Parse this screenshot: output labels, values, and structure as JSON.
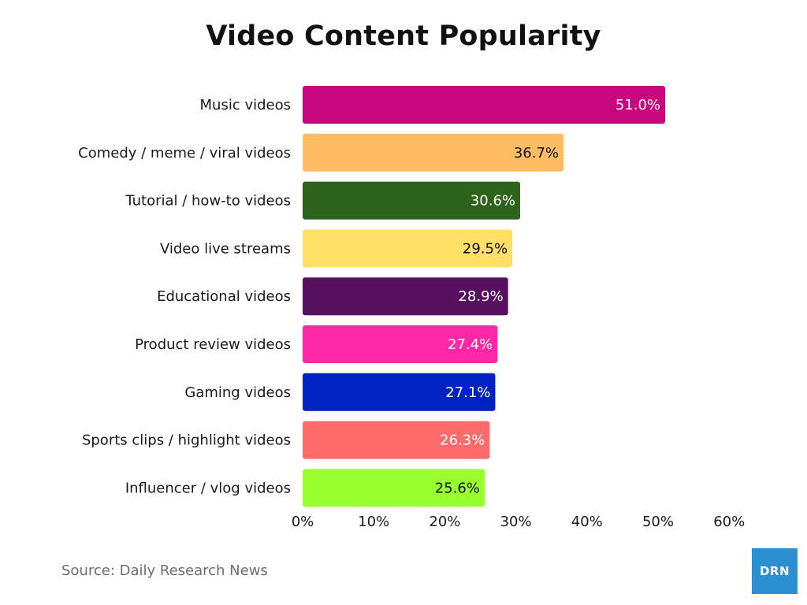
{
  "chart_data": {
    "type": "bar",
    "orientation": "horizontal",
    "title": "Video Content Popularity",
    "categories": [
      "Music videos",
      "Comedy / meme / viral videos",
      "Tutorial / how-to videos",
      "Video live streams",
      "Educational videos",
      "Product review videos",
      "Gaming videos",
      "Sports clips / highlight videos",
      "Influencer / vlog videos"
    ],
    "values": [
      51.0,
      36.7,
      30.6,
      29.5,
      28.9,
      27.4,
      27.1,
      26.3,
      25.6
    ],
    "value_labels": [
      "51.0%",
      "36.7%",
      "30.6%",
      "29.5%",
      "28.9%",
      "27.4%",
      "27.1%",
      "26.3%",
      "25.6%"
    ],
    "colors": [
      "#c8077f",
      "#ffbd63",
      "#2e631d",
      "#ffe066",
      "#56105e",
      "#ff29a7",
      "#0022c2",
      "#ff6b6b",
      "#99ff2e"
    ],
    "label_colors": [
      "#ffffff",
      "#111111",
      "#ffffff",
      "#111111",
      "#ffffff",
      "#ffffff",
      "#ffffff",
      "#ffffff",
      "#111111"
    ],
    "xlim": [
      0,
      60
    ],
    "xticks": [
      0,
      10,
      20,
      30,
      40,
      50,
      60
    ],
    "xtick_labels": [
      "0%",
      "10%",
      "20%",
      "30%",
      "40%",
      "50%",
      "60%"
    ],
    "xlabel": "",
    "ylabel": "",
    "grid": false,
    "legend": "none"
  },
  "footer": {
    "source": "Source: Daily Research News",
    "logo_text": "DRN",
    "logo_color": "#2b8fd0"
  }
}
